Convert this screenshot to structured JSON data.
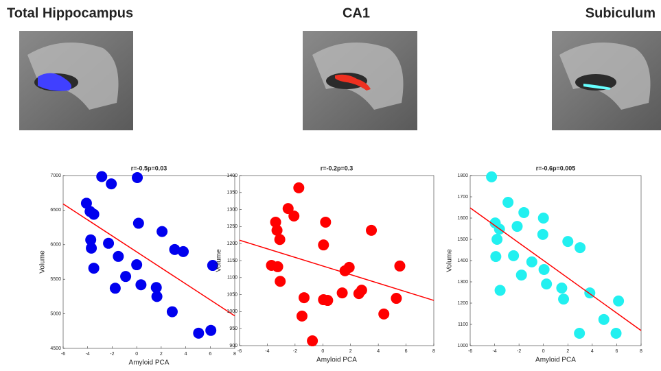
{
  "chart_data": [
    {
      "type": "scatter",
      "title": "Total Hippocampus",
      "subtitle": "r=-0.5p=0.03",
      "xlabel": "Amyloid PCA",
      "ylabel": "Volume",
      "color": "#0000ee",
      "line_color": "#ff0000",
      "x": [
        -2.85,
        -2.07,
        0.05,
        -4.1,
        -3.8,
        -3.5,
        0.15,
        2.07,
        -3.75,
        -2.3,
        -3.7,
        3.1,
        3.8,
        -1.5,
        -3.5,
        0,
        6.2,
        -0.9,
        -1.75,
        0.35,
        1.6,
        1.65,
        2.9,
        5.05,
        6.05
      ],
      "values": [
        6985,
        6880,
        6970,
        6600,
        6480,
        6440,
        6310,
        6190,
        6070,
        6020,
        5950,
        5930,
        5900,
        5830,
        5660,
        5710,
        5700,
        5540,
        5370,
        5420,
        5380,
        5250,
        5030,
        4720,
        4760
      ],
      "fit": {
        "x": [
          -6,
          8
        ],
        "y": [
          6590,
          4970
        ]
      },
      "xlim": [
        -6,
        8
      ],
      "xticks": [
        -6,
        -4,
        -2,
        0,
        2,
        4,
        6,
        8
      ],
      "ylim": [
        4500,
        7000
      ],
      "yticks": [
        4500,
        5000,
        5500,
        6000,
        6500,
        7000
      ]
    },
    {
      "type": "scatter",
      "title": "CA1",
      "subtitle": "r=-0.2p=0.3",
      "xlabel": "Amyloid PCA",
      "ylabel": "Volume",
      "color": "#ff0000",
      "line_color": "#ff0000",
      "x": [
        -1.73,
        -2.5,
        -2.08,
        -3.4,
        0.2,
        -3.3,
        3.5,
        -3.1,
        0.05,
        -3.7,
        -3.25,
        5.55,
        1.9,
        1.6,
        -3.07,
        2.8,
        2.6,
        1.4,
        5.3,
        -1.35,
        0.05,
        0.35,
        4.4,
        -1.5,
        -0.75
      ],
      "values": [
        1364,
        1303,
        1281,
        1263,
        1263,
        1239,
        1239,
        1212,
        1196,
        1136,
        1132,
        1134,
        1130,
        1120,
        1089,
        1063,
        1053,
        1055,
        1039,
        1041,
        1035,
        1033,
        993,
        987,
        914
      ],
      "fit": {
        "x": [
          -6,
          8
        ],
        "y": [
          1210,
          1033
        ]
      },
      "xlim": [
        -6,
        8
      ],
      "xticks": [
        -6,
        -4,
        -2,
        0,
        2,
        4,
        6,
        8
      ],
      "ylim": [
        900,
        1400
      ],
      "yticks": [
        900,
        950,
        1000,
        1050,
        1100,
        1150,
        1200,
        1250,
        1300,
        1350,
        1400
      ]
    },
    {
      "type": "scatter",
      "title": "Subiculum",
      "subtitle": "r=-0.6p=0.005",
      "xlabel": "Amyloid PCA",
      "ylabel": "Volume",
      "color": "#22f0f0",
      "line_color": "#ff0000",
      "x": [
        -4.25,
        -2.9,
        -1.6,
        -3.95,
        -3.6,
        -2.15,
        0,
        -3.8,
        -0.05,
        2.0,
        3.0,
        -3.9,
        -2.45,
        -0.95,
        0.05,
        -1.8,
        0.25,
        1.5,
        1.65,
        -3.55,
        3.8,
        4.95,
        6.15,
        2.95,
        5.95
      ],
      "values": [
        1794,
        1674,
        1626,
        1577,
        1548,
        1561,
        1600,
        1500,
        1523,
        1490,
        1461,
        1419,
        1423,
        1394,
        1358,
        1332,
        1290,
        1271,
        1219,
        1260,
        1248,
        1123,
        1210,
        1058,
        1058
      ],
      "fit": {
        "x": [
          -6,
          8
        ],
        "y": [
          1648,
          1071
        ]
      },
      "xlim": [
        -6,
        8
      ],
      "xticks": [
        -6,
        -4,
        -2,
        0,
        2,
        4,
        6,
        8
      ],
      "ylim": [
        1000,
        1800
      ],
      "yticks": [
        1000,
        1100,
        1200,
        1300,
        1400,
        1500,
        1600,
        1700,
        1800
      ]
    }
  ]
}
